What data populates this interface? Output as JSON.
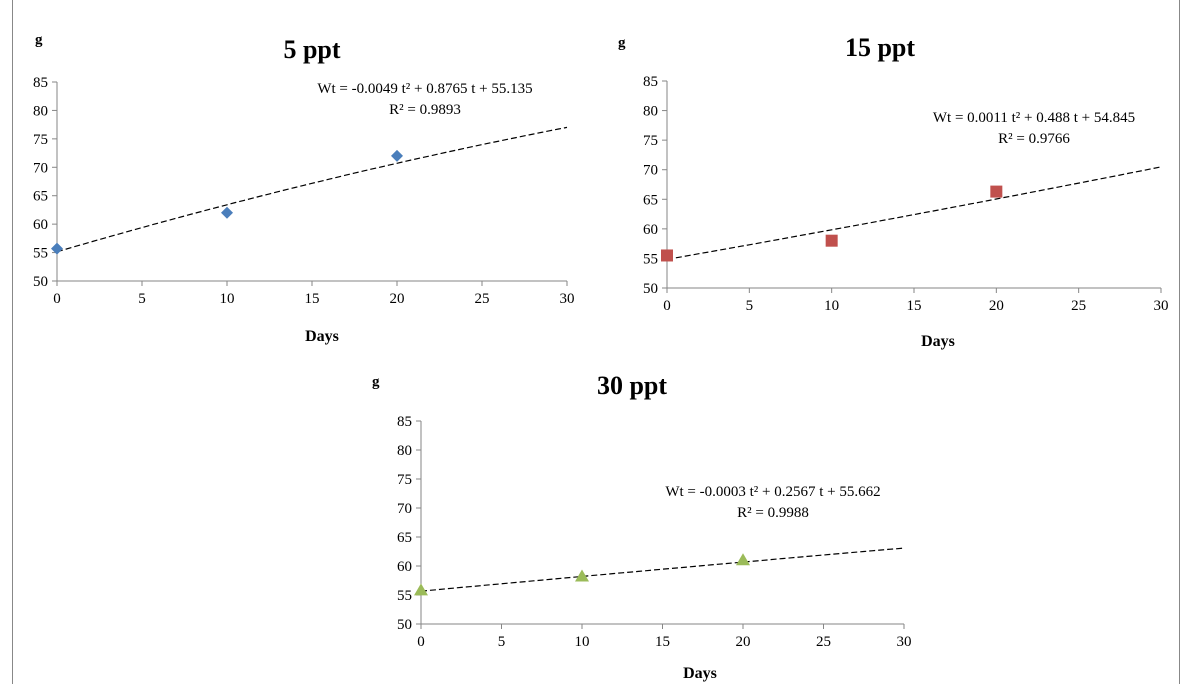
{
  "chart_data": [
    {
      "type": "scatter",
      "title": "5 ppt",
      "ylabel": "g",
      "xlabel": "Days",
      "xlim": [
        0,
        30
      ],
      "ylim": [
        50,
        85
      ],
      "xticks": [
        0,
        5,
        10,
        15,
        20,
        25,
        30
      ],
      "yticks": [
        50,
        55,
        60,
        65,
        70,
        75,
        80,
        85
      ],
      "marker": "diamond",
      "color": "#4a7ebb",
      "x": [
        0,
        10,
        20
      ],
      "y": [
        55.7,
        62,
        72
      ],
      "trend": {
        "a": -0.0049,
        "b": 0.8765,
        "c": 55.135
      },
      "equation": "Wt = -0.0049 t² + 0.8765 t + 55.135",
      "r2": "R² = 0.9893"
    },
    {
      "type": "scatter",
      "title": "15 ppt",
      "ylabel": "g",
      "xlabel": "Days",
      "xlim": [
        0,
        30
      ],
      "ylim": [
        50,
        85
      ],
      "xticks": [
        0,
        5,
        10,
        15,
        20,
        25,
        30
      ],
      "yticks": [
        50,
        55,
        60,
        65,
        70,
        75,
        80,
        85
      ],
      "marker": "square",
      "color": "#c0504d",
      "x": [
        0,
        10,
        20
      ],
      "y": [
        55.5,
        58,
        66.3
      ],
      "trend": {
        "a": 0.0011,
        "b": 0.488,
        "c": 54.845
      },
      "equation": "Wt = 0.0011 t² + 0.488 t + 54.845",
      "r2": "R² = 0.9766"
    },
    {
      "type": "scatter",
      "title": "30 ppt",
      "ylabel": "g",
      "xlabel": "Days",
      "xlim": [
        0,
        30
      ],
      "ylim": [
        50,
        85
      ],
      "xticks": [
        0,
        5,
        10,
        15,
        20,
        25,
        30
      ],
      "yticks": [
        50,
        55,
        60,
        65,
        70,
        75,
        80,
        85
      ],
      "marker": "triangle",
      "color": "#9bbb59",
      "x": [
        0,
        10,
        20
      ],
      "y": [
        55.8,
        58.2,
        61
      ],
      "trend": {
        "a": -0.0003,
        "b": 0.2567,
        "c": 55.662
      },
      "equation": "Wt = -0.0003 t² + 0.2567 t + 55.662",
      "r2": "R² = 0.9988"
    }
  ]
}
